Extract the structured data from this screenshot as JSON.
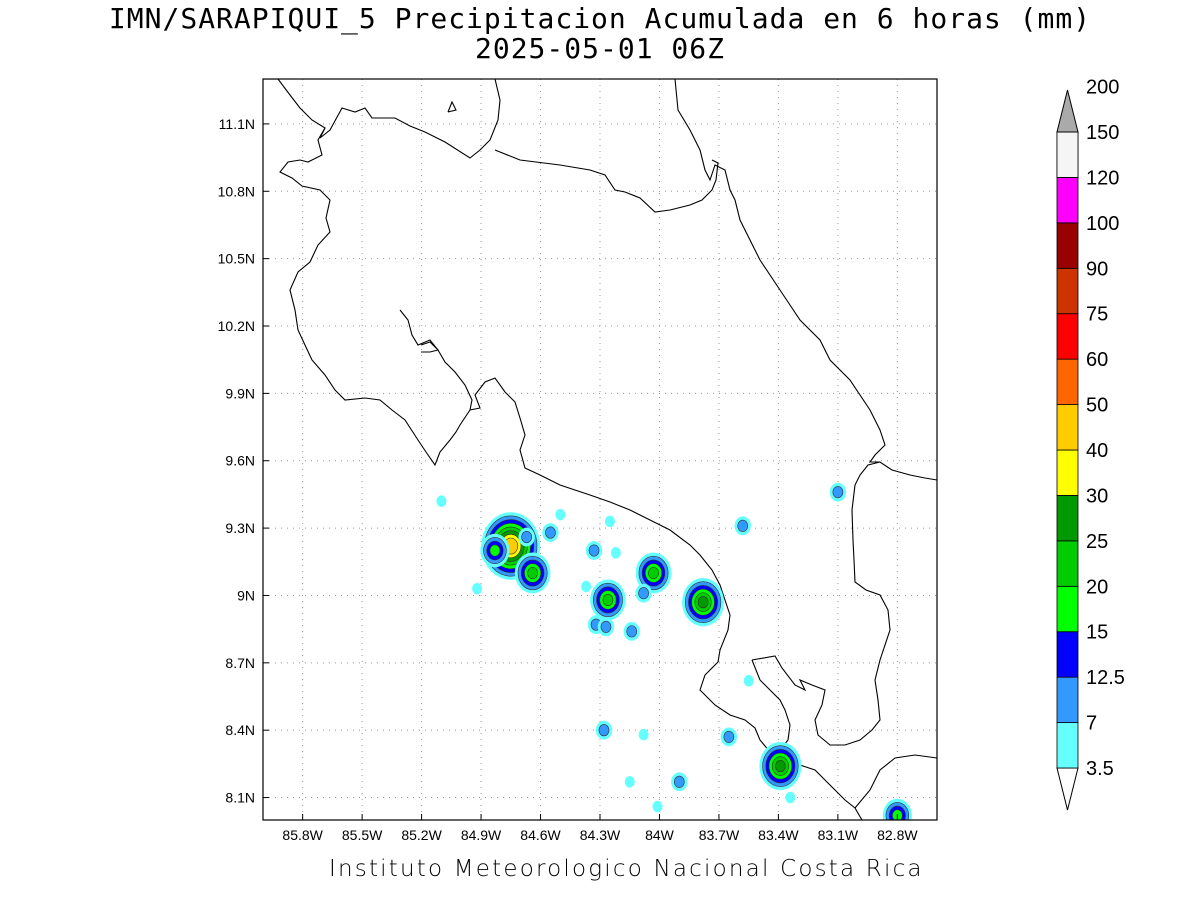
{
  "title": {
    "line1": "IMN/SARAPIQUI_5 Precipitacion Acumulada en 6 horas (mm)",
    "line2": "2025-05-01 06Z"
  },
  "footer": "Instituto Meteorologico Nacional Costa Rica",
  "map": {
    "lon_range": [
      -86.0,
      -82.6
    ],
    "lat_range": [
      8.0,
      11.3
    ],
    "grid": true,
    "lon_ticks": [
      {
        "value": -85.8,
        "label": "85.8W"
      },
      {
        "value": -85.5,
        "label": "85.5W"
      },
      {
        "value": -85.2,
        "label": "85.2W"
      },
      {
        "value": -84.9,
        "label": "84.9W"
      },
      {
        "value": -84.6,
        "label": "84.6W"
      },
      {
        "value": -84.3,
        "label": "84.3W"
      },
      {
        "value": -84.0,
        "label": "84W"
      },
      {
        "value": -83.7,
        "label": "83.7W"
      },
      {
        "value": -83.4,
        "label": "83.4W"
      },
      {
        "value": -83.1,
        "label": "83.1W"
      },
      {
        "value": -82.8,
        "label": "82.8W"
      }
    ],
    "lat_ticks": [
      {
        "value": 11.1,
        "label": "11.1N"
      },
      {
        "value": 10.8,
        "label": "10.8N"
      },
      {
        "value": 10.5,
        "label": "10.5N"
      },
      {
        "value": 10.2,
        "label": "10.2N"
      },
      {
        "value": 9.9,
        "label": "9.9N"
      },
      {
        "value": 9.6,
        "label": "9.6N"
      },
      {
        "value": 9.3,
        "label": "9.3N"
      },
      {
        "value": 9.0,
        "label": "9N"
      },
      {
        "value": 8.7,
        "label": "8.7N"
      },
      {
        "value": 8.4,
        "label": "8.4N"
      },
      {
        "value": 8.1,
        "label": "8.1N"
      }
    ],
    "precip_cells": [
      {
        "lon": -84.75,
        "lat": 9.22,
        "level": 40
      },
      {
        "lon": -84.83,
        "lat": 9.2,
        "level": 15
      },
      {
        "lon": -84.64,
        "lat": 9.1,
        "level": 20
      },
      {
        "lon": -84.26,
        "lat": 8.98,
        "level": 20
      },
      {
        "lon": -84.03,
        "lat": 9.1,
        "level": 20
      },
      {
        "lon": -83.78,
        "lat": 8.97,
        "level": 25
      },
      {
        "lon": -83.39,
        "lat": 8.24,
        "level": 25
      },
      {
        "lon": -84.67,
        "lat": 9.26,
        "level": 7
      },
      {
        "lon": -84.55,
        "lat": 9.28,
        "level": 7
      },
      {
        "lon": -84.5,
        "lat": 9.36,
        "level": 3.5
      },
      {
        "lon": -84.25,
        "lat": 9.33,
        "level": 3.5
      },
      {
        "lon": -84.33,
        "lat": 9.2,
        "level": 7
      },
      {
        "lon": -84.22,
        "lat": 9.19,
        "level": 3.5
      },
      {
        "lon": -84.37,
        "lat": 9.04,
        "level": 3.5
      },
      {
        "lon": -84.08,
        "lat": 9.01,
        "level": 7
      },
      {
        "lon": -84.32,
        "lat": 8.87,
        "level": 7
      },
      {
        "lon": -84.27,
        "lat": 8.86,
        "level": 7
      },
      {
        "lon": -84.14,
        "lat": 8.84,
        "level": 7
      },
      {
        "lon": -83.58,
        "lat": 9.31,
        "level": 7
      },
      {
        "lon": -83.1,
        "lat": 9.46,
        "level": 7
      },
      {
        "lon": -85.1,
        "lat": 9.42,
        "level": 3.5
      },
      {
        "lon": -84.92,
        "lat": 9.03,
        "level": 3.5
      },
      {
        "lon": -84.28,
        "lat": 8.4,
        "level": 7
      },
      {
        "lon": -84.08,
        "lat": 8.38,
        "level": 3.5
      },
      {
        "lon": -83.65,
        "lat": 8.37,
        "level": 7
      },
      {
        "lon": -83.9,
        "lat": 8.17,
        "level": 7
      },
      {
        "lon": -84.15,
        "lat": 8.17,
        "level": 3.5
      },
      {
        "lon": -83.34,
        "lat": 8.1,
        "level": 3.5
      },
      {
        "lon": -84.01,
        "lat": 8.06,
        "level": 3.5
      },
      {
        "lon": -82.8,
        "lat": 8.02,
        "level": 15
      },
      {
        "lon": -83.55,
        "lat": 8.62,
        "level": 3.5
      }
    ]
  },
  "colorbar": {
    "levels": [
      {
        "label": "3.5",
        "color": "#66ffff"
      },
      {
        "label": "7",
        "color": "#3399ff"
      },
      {
        "label": "12.5",
        "color": "#0000ff"
      },
      {
        "label": "15",
        "color": "#00ff00"
      },
      {
        "label": "20",
        "color": "#00cc00"
      },
      {
        "label": "25",
        "color": "#009900"
      },
      {
        "label": "30",
        "color": "#ffff00"
      },
      {
        "label": "40",
        "color": "#ffcc00"
      },
      {
        "label": "50",
        "color": "#ff6600"
      },
      {
        "label": "60",
        "color": "#ff0000"
      },
      {
        "label": "75",
        "color": "#cc3300"
      },
      {
        "label": "90",
        "color": "#990000"
      },
      {
        "label": "100",
        "color": "#ff00ff"
      },
      {
        "label": "120",
        "color": "#9933cc"
      },
      {
        "label": "150",
        "color": "#f5f5f5"
      },
      {
        "label": "200",
        "color": "#aaaaaa"
      }
    ]
  }
}
